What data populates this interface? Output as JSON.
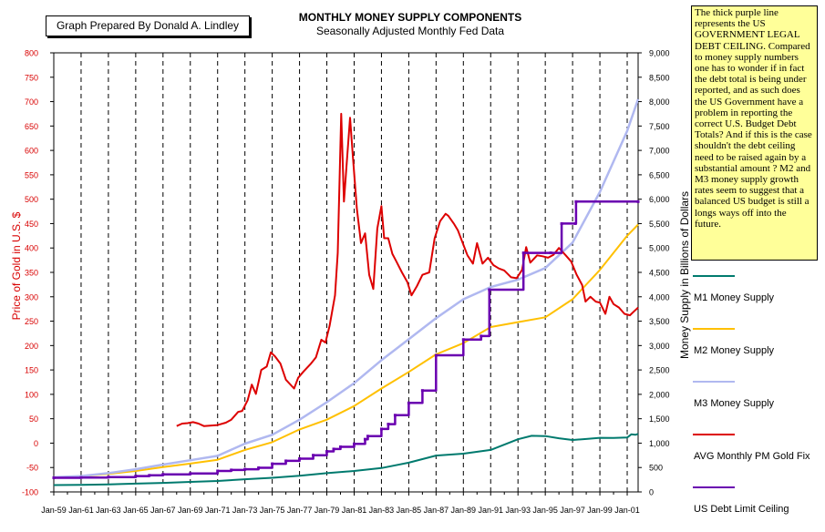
{
  "chart_data": {
    "type": "line",
    "title": "MONTHLY MONEY SUPPLY COMPONENTS",
    "subtitle": "Seasonally Adjusted Monthly Fed Data",
    "credit": "Graph Prepared By Donald A. Lindley",
    "note": "The thick purple line represents the US GOVERNMENT LEGAL DEBT CEILING.  Compared to money supply numbers one has to wonder if in fact the debt total is being under reported, and as such does the US Government have a problem in reporting the correct U.S. Budget Debt Totals?   And if this is the case shouldn't  the debt ceiling need to be raised again by a substantial amount ?  M2 and M3 money supply growth rates seem to suggest that a balanced US budget is still a longs ways off into the future.",
    "ylabel_left": "Price of Gold in U.S. $",
    "ylabel_right": "Money Supply in Billions of Dollars",
    "ylim_left": [
      -100,
      800
    ],
    "ylim_right": [
      0,
      9000
    ],
    "yticks_left": [
      "800",
      "750",
      "700",
      "650",
      "600",
      "550",
      "500",
      "450",
      "400",
      "350",
      "300",
      "250",
      "200",
      "150",
      "100",
      "50",
      "0",
      "-50",
      "-100"
    ],
    "yticks_right": [
      "9,000",
      "8,500",
      "8,000",
      "7,500",
      "7,000",
      "6,500",
      "6,000",
      "5,500",
      "5,000",
      "4,500",
      "4,000",
      "3,500",
      "3,000",
      "2,500",
      "2,000",
      "1,500",
      "1,000",
      "500",
      "0"
    ],
    "xticks": [
      "Jan-59",
      "Jan-61",
      "Jan-63",
      "Jan-65",
      "Jan-67",
      "Jan-69",
      "Jan-71",
      "Jan-73",
      "Jan-75",
      "Jan-77",
      "Jan-79",
      "Jan-81",
      "Jan-83",
      "Jan-85",
      "Jan-87",
      "Jan-89",
      "Jan-91",
      "Jan-93",
      "Jan-95",
      "Jan-97",
      "Jan-99",
      "Jan-01"
    ],
    "x_range": [
      1959.0,
      2001.8
    ],
    "grid": "vertical dashed",
    "legend_position": "right",
    "series": [
      {
        "name": "M1 Money Supply",
        "axis": "right",
        "color": "#007a6e",
        "points": [
          [
            1959,
            140
          ],
          [
            1961,
            145
          ],
          [
            1963,
            155
          ],
          [
            1965,
            170
          ],
          [
            1967,
            185
          ],
          [
            1969,
            205
          ],
          [
            1971,
            225
          ],
          [
            1973,
            260
          ],
          [
            1975,
            290
          ],
          [
            1977,
            330
          ],
          [
            1979,
            385
          ],
          [
            1981,
            430
          ],
          [
            1983,
            490
          ],
          [
            1985,
            600
          ],
          [
            1987,
            745
          ],
          [
            1989,
            785
          ],
          [
            1991,
            860
          ],
          [
            1993,
            1080
          ],
          [
            1994,
            1150
          ],
          [
            1995,
            1145
          ],
          [
            1996,
            1100
          ],
          [
            1997,
            1065
          ],
          [
            1998,
            1085
          ],
          [
            1999,
            1110
          ],
          [
            2000,
            1105
          ],
          [
            2001,
            1115
          ],
          [
            2001.3,
            1180
          ],
          [
            2001.6,
            1170
          ],
          [
            2001.8,
            1190
          ]
        ]
      },
      {
        "name": "M2 Money Supply",
        "axis": "right",
        "color": "#ffc000",
        "points": [
          [
            1959,
            300
          ],
          [
            1961,
            320
          ],
          [
            1963,
            370
          ],
          [
            1965,
            430
          ],
          [
            1967,
            510
          ],
          [
            1969,
            580
          ],
          [
            1971,
            660
          ],
          [
            1973,
            860
          ],
          [
            1975,
            1020
          ],
          [
            1977,
            1280
          ],
          [
            1979,
            1480
          ],
          [
            1981,
            1760
          ],
          [
            1983,
            2120
          ],
          [
            1985,
            2460
          ],
          [
            1987,
            2820
          ],
          [
            1989,
            3050
          ],
          [
            1991,
            3380
          ],
          [
            1993,
            3480
          ],
          [
            1995,
            3580
          ],
          [
            1997,
            3950
          ],
          [
            1999,
            4550
          ],
          [
            2001,
            5250
          ],
          [
            2001.8,
            5480
          ]
        ]
      },
      {
        "name": "M3 Money Supply",
        "axis": "right",
        "color": "#b0b8f0",
        "points": [
          [
            1959,
            300
          ],
          [
            1961,
            325
          ],
          [
            1963,
            385
          ],
          [
            1965,
            465
          ],
          [
            1967,
            560
          ],
          [
            1969,
            650
          ],
          [
            1971,
            740
          ],
          [
            1973,
            990
          ],
          [
            1975,
            1170
          ],
          [
            1977,
            1480
          ],
          [
            1979,
            1840
          ],
          [
            1981,
            2230
          ],
          [
            1983,
            2700
          ],
          [
            1985,
            3130
          ],
          [
            1987,
            3560
          ],
          [
            1989,
            3950
          ],
          [
            1991,
            4200
          ],
          [
            1993,
            4350
          ],
          [
            1995,
            4590
          ],
          [
            1997,
            5110
          ],
          [
            1999,
            6150
          ],
          [
            2001,
            7400
          ],
          [
            2001.8,
            8050
          ]
        ]
      },
      {
        "name": "AVG Monthly PM Gold Fix",
        "axis": "left",
        "color": "#dd0000",
        "points": [
          [
            1968.0,
            35
          ],
          [
            1968.4,
            40
          ],
          [
            1968.8,
            41
          ],
          [
            1969.2,
            43
          ],
          [
            1969.6,
            40
          ],
          [
            1970.0,
            35
          ],
          [
            1971.0,
            37
          ],
          [
            1971.6,
            42
          ],
          [
            1972.0,
            48
          ],
          [
            1972.5,
            64
          ],
          [
            1972.8,
            66
          ],
          [
            1973.2,
            88
          ],
          [
            1973.5,
            120
          ],
          [
            1973.8,
            101
          ],
          [
            1974.2,
            150
          ],
          [
            1974.6,
            157
          ],
          [
            1974.9,
            186
          ],
          [
            1975.2,
            178
          ],
          [
            1975.6,
            163
          ],
          [
            1976.0,
            130
          ],
          [
            1976.6,
            112
          ],
          [
            1976.9,
            134
          ],
          [
            1977.3,
            147
          ],
          [
            1977.8,
            162
          ],
          [
            1978.2,
            176
          ],
          [
            1978.6,
            212
          ],
          [
            1978.9,
            206
          ],
          [
            1979.2,
            240
          ],
          [
            1979.6,
            303
          ],
          [
            1979.8,
            390
          ],
          [
            1980.05,
            675
          ],
          [
            1980.25,
            495
          ],
          [
            1980.45,
            570
          ],
          [
            1980.7,
            667
          ],
          [
            1980.9,
            590
          ],
          [
            1981.2,
            480
          ],
          [
            1981.5,
            410
          ],
          [
            1981.8,
            430
          ],
          [
            1982.1,
            345
          ],
          [
            1982.4,
            316
          ],
          [
            1982.7,
            440
          ],
          [
            1983.0,
            486
          ],
          [
            1983.2,
            420
          ],
          [
            1983.5,
            420
          ],
          [
            1983.8,
            388
          ],
          [
            1984.1,
            372
          ],
          [
            1984.5,
            350
          ],
          [
            1984.9,
            330
          ],
          [
            1985.2,
            303
          ],
          [
            1985.6,
            322
          ],
          [
            1986.0,
            345
          ],
          [
            1986.5,
            350
          ],
          [
            1986.9,
            420
          ],
          [
            1987.3,
            455
          ],
          [
            1987.7,
            470
          ],
          [
            1987.9,
            466
          ],
          [
            1988.3,
            450
          ],
          [
            1988.6,
            436
          ],
          [
            1988.9,
            414
          ],
          [
            1989.3,
            385
          ],
          [
            1989.7,
            368
          ],
          [
            1990.0,
            410
          ],
          [
            1990.4,
            368
          ],
          [
            1990.8,
            380
          ],
          [
            1991.2,
            365
          ],
          [
            1991.6,
            358
          ],
          [
            1992.0,
            354
          ],
          [
            1992.5,
            340
          ],
          [
            1992.9,
            338
          ],
          [
            1993.3,
            355
          ],
          [
            1993.6,
            402
          ],
          [
            1993.9,
            370
          ],
          [
            1994.4,
            385
          ],
          [
            1994.8,
            383
          ],
          [
            1995.2,
            380
          ],
          [
            1995.6,
            386
          ],
          [
            1996.0,
            400
          ],
          [
            1996.5,
            385
          ],
          [
            1996.9,
            372
          ],
          [
            1997.3,
            345
          ],
          [
            1997.7,
            324
          ],
          [
            1997.95,
            290
          ],
          [
            1998.3,
            300
          ],
          [
            1998.7,
            290
          ],
          [
            1999.0,
            288
          ],
          [
            1999.4,
            265
          ],
          [
            1999.7,
            300
          ],
          [
            2000.0,
            285
          ],
          [
            2000.4,
            278
          ],
          [
            2000.8,
            265
          ],
          [
            2001.2,
            262
          ],
          [
            2001.5,
            270
          ],
          [
            2001.8,
            278
          ]
        ]
      },
      {
        "name": "US Debt Limit Ceiling",
        "axis": "right",
        "color": "#6a00b0",
        "points": [
          [
            1959,
            290
          ],
          [
            1961,
            295
          ],
          [
            1963,
            305
          ],
          [
            1965,
            325
          ],
          [
            1966,
            340
          ],
          [
            1967,
            360
          ],
          [
            1969,
            377
          ],
          [
            1971,
            430
          ],
          [
            1972,
            450
          ],
          [
            1973,
            465
          ],
          [
            1974,
            495
          ],
          [
            1975,
            577
          ],
          [
            1976,
            636
          ],
          [
            1977,
            682
          ],
          [
            1978,
            752
          ],
          [
            1979,
            830
          ],
          [
            1979.5,
            879
          ],
          [
            1980,
            925
          ],
          [
            1981,
            985
          ],
          [
            1981.8,
            1080
          ],
          [
            1982,
            1143
          ],
          [
            1983,
            1290
          ],
          [
            1983.5,
            1390
          ],
          [
            1984,
            1573
          ],
          [
            1985,
            1824
          ],
          [
            1986,
            2079
          ],
          [
            1987,
            2800
          ],
          [
            1989,
            3123
          ],
          [
            1990.3,
            3195
          ],
          [
            1990.9,
            4145
          ],
          [
            1993.4,
            4900
          ],
          [
            1995.4,
            4900
          ],
          [
            1996.2,
            5500
          ],
          [
            1997.2,
            5500
          ],
          [
            1997.25,
            5950
          ],
          [
            2001.8,
            5950
          ]
        ]
      }
    ]
  }
}
